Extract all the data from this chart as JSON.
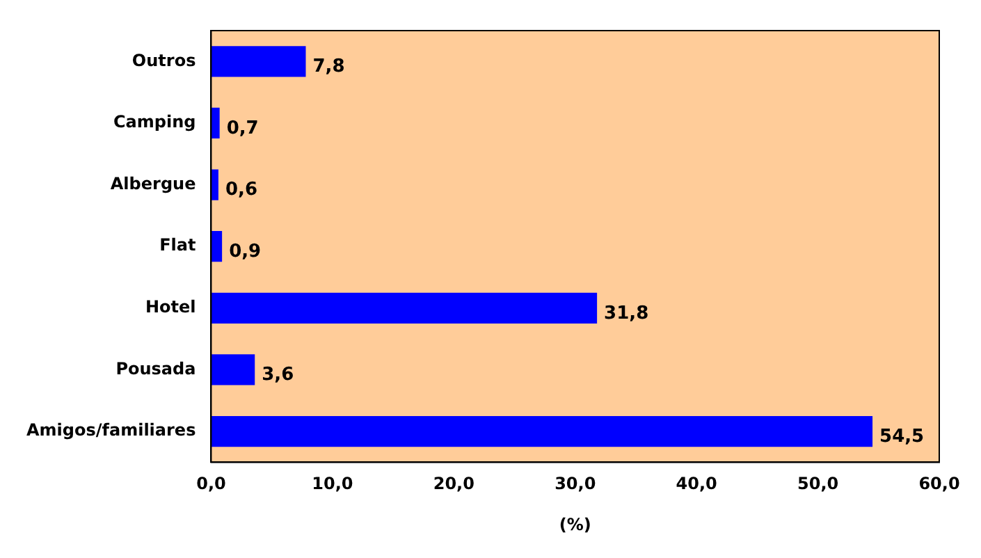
{
  "chart_data": {
    "type": "bar",
    "orientation": "horizontal",
    "xlabel": "(%)",
    "categories": [
      "Outros",
      "Camping",
      "Albergue",
      "Flat",
      "Hotel",
      "Pousada",
      "Amigos/familiares"
    ],
    "values": [
      7.8,
      0.7,
      0.6,
      0.9,
      31.8,
      3.6,
      54.5
    ],
    "value_labels": [
      "7,8",
      "0,7",
      "0,6",
      "0,9",
      "31,8",
      "3,6",
      "54,5"
    ],
    "color": "#0000ff",
    "xlim": [
      0,
      60
    ],
    "xticks": [
      {
        "value": 0,
        "label": "0,0"
      },
      {
        "value": 10,
        "label": "10,0"
      },
      {
        "value": 20,
        "label": "20,0"
      },
      {
        "value": 30,
        "label": "30,0"
      },
      {
        "value": 40,
        "label": "40,0"
      },
      {
        "value": 50,
        "label": "50,0"
      },
      {
        "value": 60,
        "label": "60,0"
      }
    ],
    "grid": false,
    "legend": false
  }
}
